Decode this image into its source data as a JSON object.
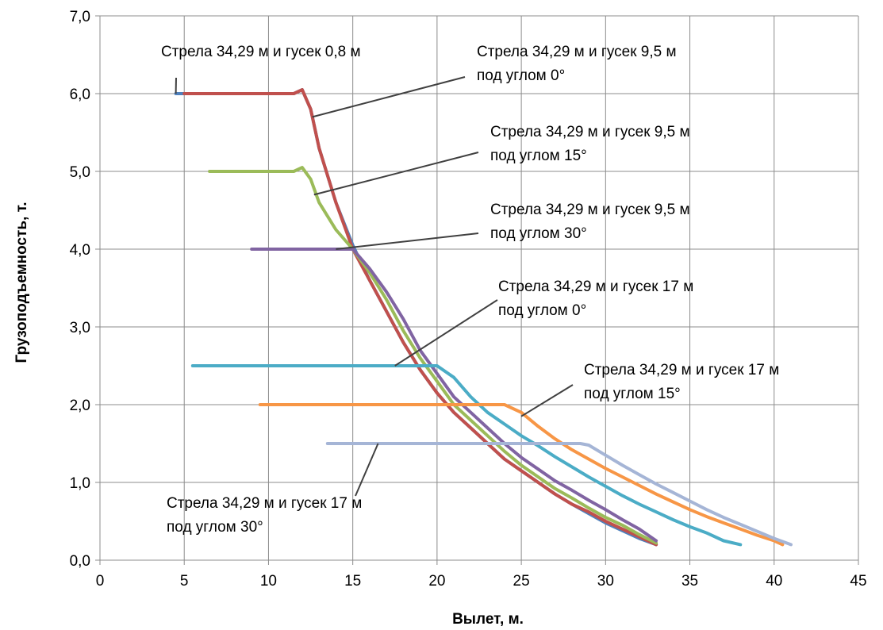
{
  "chart_data": {
    "type": "line",
    "xlabel": "Вылет, м.",
    "ylabel": "Грузоподъемность, т.",
    "xlim": [
      0,
      45
    ],
    "ylim": [
      0,
      7
    ],
    "x_ticks": [
      "0",
      "5",
      "10",
      "15",
      "20",
      "25",
      "30",
      "35",
      "40",
      "45"
    ],
    "y_ticks": [
      "0,0",
      "1,0",
      "2,0",
      "3,0",
      "4,0",
      "5,0",
      "6,0",
      "7,0"
    ],
    "grid": true,
    "legend": "none",
    "series": [
      {
        "color": "#4f81bd",
        "x": [
          4.5,
          5,
          10,
          11.5,
          12,
          12.5,
          13,
          14,
          15,
          16,
          17,
          18,
          19,
          20,
          21,
          22,
          23,
          24,
          25,
          26,
          27,
          28,
          29,
          30,
          31,
          32,
          33
        ],
        "y": [
          6.0,
          6.0,
          6.0,
          6.0,
          6.05,
          5.8,
          5.3,
          4.6,
          4.05,
          3.6,
          3.2,
          2.8,
          2.45,
          2.15,
          1.9,
          1.7,
          1.5,
          1.3,
          1.15,
          1.0,
          0.85,
          0.72,
          0.6,
          0.48,
          0.38,
          0.28,
          0.2
        ]
      },
      {
        "color": "#c0504d",
        "x": [
          5,
          10,
          11.5,
          12,
          12.5,
          13,
          14,
          15,
          16,
          17,
          18,
          19,
          20,
          21,
          22,
          23,
          24,
          25,
          26,
          27,
          28,
          29,
          30,
          31,
          32,
          33
        ],
        "y": [
          6.0,
          6.0,
          6.0,
          6.05,
          5.8,
          5.3,
          4.6,
          4.0,
          3.6,
          3.2,
          2.8,
          2.45,
          2.15,
          1.9,
          1.7,
          1.5,
          1.3,
          1.15,
          1.0,
          0.85,
          0.72,
          0.62,
          0.5,
          0.4,
          0.3,
          0.2
        ]
      },
      {
        "color": "#9bbb59",
        "x": [
          6.5,
          11,
          11.5,
          12,
          12.5,
          13,
          14,
          15,
          16,
          17,
          18,
          19,
          20,
          21,
          22,
          23,
          24,
          25,
          26,
          27,
          28,
          29,
          30,
          31,
          32,
          33
        ],
        "y": [
          5.0,
          5.0,
          5.0,
          5.05,
          4.9,
          4.6,
          4.25,
          4.0,
          3.7,
          3.35,
          2.95,
          2.6,
          2.3,
          2.0,
          1.8,
          1.6,
          1.4,
          1.22,
          1.07,
          0.92,
          0.8,
          0.67,
          0.55,
          0.45,
          0.33,
          0.22
        ]
      },
      {
        "color": "#8064a2",
        "x": [
          9,
          14,
          15,
          16,
          17,
          18,
          19,
          20,
          21,
          22,
          23,
          24,
          25,
          26,
          27,
          28,
          29,
          30,
          31,
          32,
          33
        ],
        "y": [
          4.0,
          4.0,
          4.0,
          3.75,
          3.45,
          3.1,
          2.7,
          2.4,
          2.1,
          1.9,
          1.7,
          1.5,
          1.32,
          1.17,
          1.02,
          0.9,
          0.77,
          0.65,
          0.52,
          0.4,
          0.25
        ]
      },
      {
        "color": "#4bacc6",
        "x": [
          5.5,
          19.5,
          20,
          21,
          22,
          23,
          24,
          25,
          26,
          27,
          28,
          29,
          30,
          31,
          32,
          33,
          34,
          35,
          36,
          37,
          38
        ],
        "y": [
          2.5,
          2.5,
          2.5,
          2.35,
          2.1,
          1.9,
          1.75,
          1.6,
          1.47,
          1.33,
          1.2,
          1.07,
          0.95,
          0.83,
          0.72,
          0.62,
          0.52,
          0.43,
          0.35,
          0.25,
          0.2
        ]
      },
      {
        "color": "#f79646",
        "x": [
          9.5,
          23.5,
          24,
          25,
          26,
          27,
          28,
          29,
          30,
          31,
          32,
          33,
          34,
          35,
          36,
          37,
          38,
          39,
          40,
          40.5
        ],
        "y": [
          2.0,
          2.0,
          2.0,
          1.9,
          1.72,
          1.56,
          1.42,
          1.3,
          1.18,
          1.07,
          0.96,
          0.85,
          0.75,
          0.65,
          0.56,
          0.48,
          0.4,
          0.32,
          0.25,
          0.2
        ]
      },
      {
        "color": "#a5b5d6",
        "x": [
          13.5,
          28.5,
          29,
          30,
          31,
          32,
          33,
          34,
          35,
          36,
          37,
          38,
          39,
          40,
          41
        ],
        "y": [
          1.5,
          1.5,
          1.48,
          1.35,
          1.22,
          1.1,
          0.98,
          0.87,
          0.76,
          0.65,
          0.55,
          0.46,
          0.37,
          0.28,
          0.2
        ]
      }
    ],
    "annotations": [
      {
        "lines": [
          "Стрела 34,29 м и гусек 0,8 м"
        ],
        "point": [
          4.5,
          6.0
        ]
      },
      {
        "lines": [
          "Стрела 34,29 м и гусек 9,5 м",
          "под углом 0°"
        ],
        "point": [
          12.6,
          5.7
        ]
      },
      {
        "lines": [
          "Стрела 34,29 м и гусек 9,5 м",
          "под углом 15°"
        ],
        "point": [
          12.7,
          4.7
        ]
      },
      {
        "lines": [
          "Стрела 34,29 м и гусек 9,5 м",
          "под углом 30°"
        ],
        "point": [
          14.0,
          4.0
        ]
      },
      {
        "lines": [
          "Стрела 34,29 м и гусек 17 м",
          "под углом 0°"
        ],
        "point": [
          17.5,
          2.5
        ]
      },
      {
        "lines": [
          "Стрела 34,29 м и гусек 17 м",
          "под углом 15°"
        ],
        "point": [
          25.0,
          1.85
        ]
      },
      {
        "lines": [
          "Стрела 34,29 м и гусек 17 м",
          "под углом 30°"
        ],
        "point": [
          16.5,
          1.5
        ]
      }
    ]
  }
}
